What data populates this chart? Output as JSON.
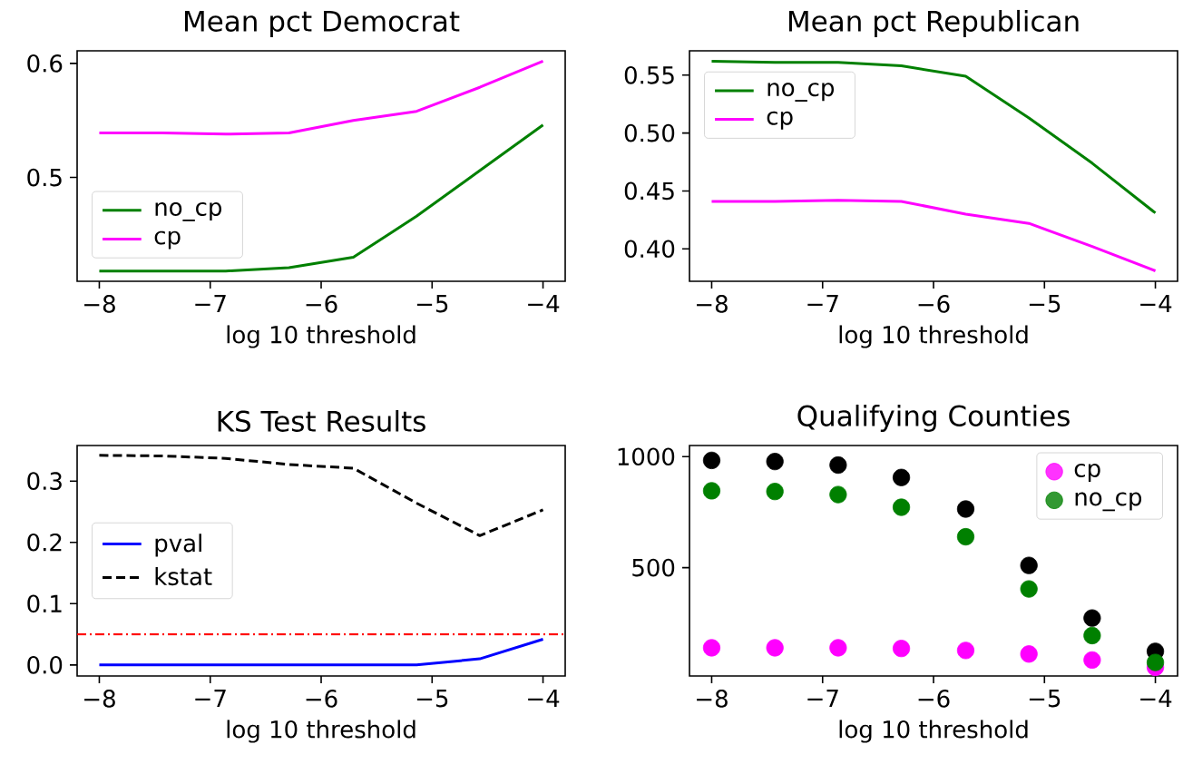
{
  "chart_data": [
    {
      "type": "line",
      "title": "Mean pct Democrat",
      "xlabel": "log 10 threshold",
      "x": [
        -8,
        -7.43,
        -6.86,
        -6.29,
        -5.71,
        -5.14,
        -4.57,
        -4
      ],
      "xlim": [
        -8.2,
        -3.8
      ],
      "xticks": [
        {
          "value": -8,
          "label": "−8"
        },
        {
          "value": -7,
          "label": "−7"
        },
        {
          "value": -6,
          "label": "−6"
        },
        {
          "value": -5,
          "label": "−5"
        },
        {
          "value": -4,
          "label": "−4"
        }
      ],
      "ylim": [
        0.409,
        0.611
      ],
      "yticks": [
        0.5,
        0.6
      ],
      "legend": "bottom left",
      "series": [
        {
          "name": "no_cp",
          "color": "#008000",
          "values": [
            0.418,
            0.418,
            0.418,
            0.421,
            0.43,
            0.466,
            0.506,
            0.546
          ]
        },
        {
          "name": "cp",
          "color": "#ff00ff",
          "values": [
            0.539,
            0.539,
            0.538,
            0.539,
            0.55,
            0.558,
            0.579,
            0.602
          ]
        }
      ]
    },
    {
      "type": "line",
      "title": "Mean pct Republican",
      "xlabel": "log 10 threshold",
      "x": [
        -8,
        -7.43,
        -6.86,
        -6.29,
        -5.71,
        -5.14,
        -4.57,
        -4
      ],
      "xlim": [
        -8.2,
        -3.8
      ],
      "xticks": [
        {
          "value": -8,
          "label": "−8"
        },
        {
          "value": -7,
          "label": "−7"
        },
        {
          "value": -6,
          "label": "−6"
        },
        {
          "value": -5,
          "label": "−5"
        },
        {
          "value": -4,
          "label": "−4"
        }
      ],
      "ylim": [
        0.372,
        0.571
      ],
      "yticks": [
        {
          "value": 0.4,
          "label": "0.40"
        },
        {
          "value": 0.45,
          "label": "0.45"
        },
        {
          "value": 0.5,
          "label": "0.50"
        },
        {
          "value": 0.55,
          "label": "0.55"
        }
      ],
      "legend": "top left",
      "series": [
        {
          "name": "no_cp",
          "color": "#008000",
          "values": [
            0.562,
            0.561,
            0.561,
            0.558,
            0.549,
            0.513,
            0.474,
            0.431
          ]
        },
        {
          "name": "cp",
          "color": "#ff00ff",
          "values": [
            0.441,
            0.441,
            0.442,
            0.441,
            0.43,
            0.422,
            0.402,
            0.381
          ]
        }
      ]
    },
    {
      "type": "line",
      "title": "KS Test Results",
      "xlabel": "log 10 threshold",
      "x": [
        -8,
        -7.43,
        -6.86,
        -6.29,
        -5.71,
        -5.14,
        -4.57,
        -4
      ],
      "xlim": [
        -8.2,
        -3.8
      ],
      "xticks": [
        {
          "value": -8,
          "label": "−8"
        },
        {
          "value": -7,
          "label": "−7"
        },
        {
          "value": -6,
          "label": "−6"
        },
        {
          "value": -5,
          "label": "−5"
        },
        {
          "value": -4,
          "label": "−4"
        }
      ],
      "ylim": [
        -0.018,
        0.358
      ],
      "yticks": [
        {
          "value": 0,
          "label": "0.0"
        },
        0.1,
        0.2,
        0.3
      ],
      "legend": "center left",
      "ref_lines": [
        {
          "axis": "y",
          "value": 0.05,
          "color": "#ff0000",
          "line_style": "dashdot"
        }
      ],
      "series": [
        {
          "name": "pval",
          "color": "#0000ff",
          "line_style": "solid",
          "values": [
            0,
            0,
            0,
            0,
            0,
            0,
            0.01,
            0.042
          ]
        },
        {
          "name": "kstat",
          "color": "#000000",
          "line_style": "dashed",
          "values": [
            0.342,
            0.341,
            0.337,
            0.327,
            0.321,
            0.264,
            0.211,
            0.253
          ]
        }
      ]
    },
    {
      "type": "scatter",
      "title": "Qualifying Counties",
      "xlabel": "log 10 threshold",
      "x": [
        -8,
        -7.43,
        -6.86,
        -6.29,
        -5.71,
        -5.14,
        -4.57,
        -4
      ],
      "xlim": [
        -8.2,
        -3.8
      ],
      "xticks": [
        {
          "value": -8,
          "label": "−8"
        },
        {
          "value": -7,
          "label": "−7"
        },
        {
          "value": -6,
          "label": "−6"
        },
        {
          "value": -5,
          "label": "−5"
        },
        {
          "value": -4,
          "label": "−4"
        }
      ],
      "ylim": [
        12,
        1050
      ],
      "yticks": [
        500,
        1000
      ],
      "legend": "top right",
      "marker": "circle",
      "series": [
        {
          "color": "#000000",
          "values": [
            983,
            978,
            962,
            906,
            764,
            510,
            273,
            123
          ]
        },
        {
          "name": "cp",
          "color": "#ff00ff",
          "values": [
            139,
            139,
            139,
            136,
            127,
            111,
            84,
            51
          ]
        },
        {
          "name": "no_cp",
          "color": "#008000",
          "values": [
            846,
            843,
            829,
            772,
            639,
            404,
            194,
            73
          ]
        }
      ]
    }
  ]
}
